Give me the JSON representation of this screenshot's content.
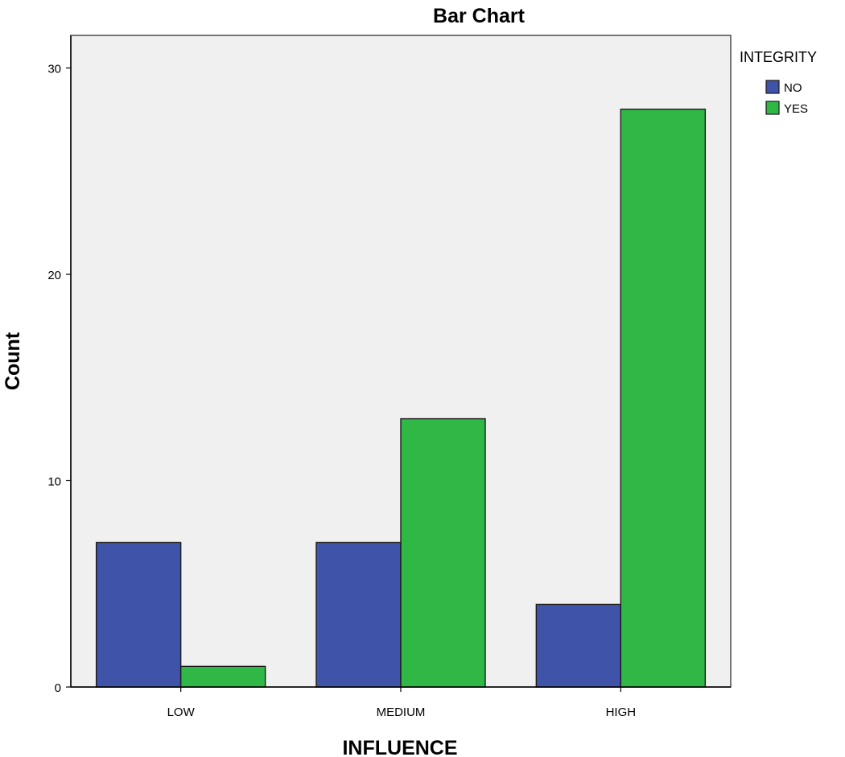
{
  "chart_data": {
    "type": "bar",
    "title": "Bar Chart",
    "xlabel": "INFLUENCE",
    "ylabel": "Count",
    "categories": [
      "LOW",
      "MEDIUM",
      "HIGH"
    ],
    "series": [
      {
        "name": "NO",
        "values": [
          7,
          7,
          4
        ],
        "color": "#3f54a8"
      },
      {
        "name": "YES",
        "values": [
          1,
          13,
          28
        ],
        "color": "#2fb845"
      }
    ],
    "ylim": [
      0,
      31.6
    ],
    "yticks": [
      0,
      10,
      20,
      30
    ],
    "legend": {
      "title": "INTEGRITY",
      "placement": "right"
    },
    "grid": false,
    "plot_background": "#f0f0f0"
  }
}
